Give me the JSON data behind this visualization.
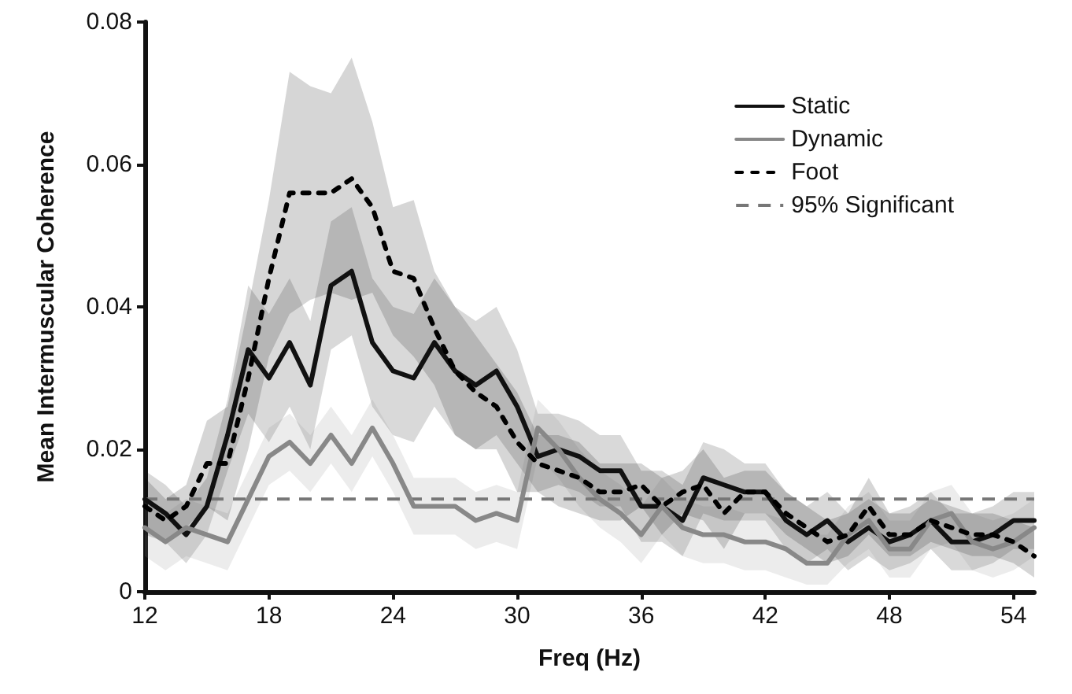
{
  "chart_data": {
    "type": "line",
    "xlabel": "Freq (Hz)",
    "ylabel": "Mean Intermuscular Coherence",
    "x": [
      12,
      13,
      14,
      15,
      16,
      17,
      18,
      19,
      20,
      21,
      22,
      23,
      24,
      25,
      26,
      27,
      28,
      29,
      30,
      31,
      32,
      33,
      34,
      35,
      36,
      37,
      38,
      39,
      40,
      41,
      42,
      43,
      44,
      45,
      46,
      47,
      48,
      49,
      50,
      51,
      52,
      53,
      54,
      55
    ],
    "series": [
      {
        "name": "Static",
        "color": "#111111",
        "line_style": "solid",
        "values": [
          0.013,
          0.011,
          0.008,
          0.012,
          0.022,
          0.034,
          0.03,
          0.035,
          0.029,
          0.043,
          0.045,
          0.035,
          0.031,
          0.03,
          0.035,
          0.031,
          0.029,
          0.031,
          0.026,
          0.019,
          0.02,
          0.019,
          0.017,
          0.017,
          0.012,
          0.012,
          0.01,
          0.016,
          0.015,
          0.014,
          0.014,
          0.01,
          0.008,
          0.01,
          0.007,
          0.009,
          0.007,
          0.008,
          0.01,
          0.007,
          0.007,
          0.008,
          0.01,
          0.01
        ],
        "upper": [
          0.017,
          0.015,
          0.012,
          0.016,
          0.027,
          0.043,
          0.039,
          0.044,
          0.038,
          0.052,
          0.054,
          0.044,
          0.04,
          0.039,
          0.044,
          0.04,
          0.038,
          0.04,
          0.034,
          0.025,
          0.025,
          0.024,
          0.022,
          0.022,
          0.017,
          0.017,
          0.015,
          0.021,
          0.02,
          0.018,
          0.018,
          0.014,
          0.012,
          0.014,
          0.011,
          0.013,
          0.011,
          0.012,
          0.014,
          0.011,
          0.011,
          0.012,
          0.014,
          0.014
        ],
        "lower": [
          0.009,
          0.007,
          0.004,
          0.008,
          0.017,
          0.025,
          0.021,
          0.026,
          0.02,
          0.034,
          0.036,
          0.026,
          0.022,
          0.021,
          0.026,
          0.022,
          0.02,
          0.022,
          0.018,
          0.014,
          0.015,
          0.014,
          0.012,
          0.012,
          0.007,
          0.007,
          0.005,
          0.011,
          0.01,
          0.01,
          0.01,
          0.006,
          0.004,
          0.006,
          0.003,
          0.005,
          0.003,
          0.004,
          0.006,
          0.003,
          0.003,
          0.004,
          0.006,
          0.006
        ]
      },
      {
        "name": "Dynamic",
        "color": "#888888",
        "line_style": "solid",
        "values": [
          0.009,
          0.007,
          0.009,
          0.008,
          0.007,
          0.013,
          0.019,
          0.021,
          0.018,
          0.022,
          0.018,
          0.023,
          0.018,
          0.012,
          0.012,
          0.012,
          0.01,
          0.011,
          0.01,
          0.023,
          0.02,
          0.016,
          0.013,
          0.011,
          0.008,
          0.012,
          0.009,
          0.008,
          0.008,
          0.007,
          0.007,
          0.006,
          0.004,
          0.004,
          0.008,
          0.01,
          0.006,
          0.006,
          0.01,
          0.011,
          0.007,
          0.006,
          0.007,
          0.009
        ],
        "upper": [
          0.013,
          0.011,
          0.013,
          0.012,
          0.011,
          0.017,
          0.023,
          0.025,
          0.022,
          0.026,
          0.022,
          0.027,
          0.022,
          0.016,
          0.016,
          0.016,
          0.014,
          0.015,
          0.014,
          0.027,
          0.024,
          0.02,
          0.017,
          0.015,
          0.012,
          0.016,
          0.013,
          0.012,
          0.012,
          0.011,
          0.011,
          0.01,
          0.008,
          0.008,
          0.012,
          0.014,
          0.01,
          0.01,
          0.014,
          0.015,
          0.011,
          0.01,
          0.011,
          0.013
        ],
        "lower": [
          0.005,
          0.003,
          0.005,
          0.004,
          0.003,
          0.009,
          0.015,
          0.017,
          0.014,
          0.018,
          0.014,
          0.019,
          0.014,
          0.008,
          0.008,
          0.008,
          0.006,
          0.007,
          0.006,
          0.019,
          0.016,
          0.012,
          0.009,
          0.007,
          0.004,
          0.008,
          0.005,
          0.004,
          0.004,
          0.003,
          0.003,
          0.002,
          0.001,
          0.001,
          0.004,
          0.006,
          0.002,
          0.002,
          0.006,
          0.007,
          0.003,
          0.002,
          0.003,
          0.005
        ]
      },
      {
        "name": "Foot",
        "color": "#000000",
        "line_style": "dotted",
        "values": [
          0.012,
          0.01,
          0.012,
          0.018,
          0.018,
          0.03,
          0.044,
          0.056,
          0.056,
          0.056,
          0.058,
          0.054,
          0.045,
          0.044,
          0.037,
          0.031,
          0.028,
          0.026,
          0.021,
          0.018,
          0.017,
          0.016,
          0.014,
          0.014,
          0.015,
          0.012,
          0.014,
          0.015,
          0.011,
          0.014,
          0.014,
          0.011,
          0.009,
          0.007,
          0.008,
          0.012,
          0.008,
          0.008,
          0.01,
          0.009,
          0.008,
          0.008,
          0.007,
          0.005
        ],
        "upper": [
          0.016,
          0.013,
          0.015,
          0.024,
          0.026,
          0.04,
          0.055,
          0.073,
          0.071,
          0.07,
          0.075,
          0.066,
          0.054,
          0.055,
          0.045,
          0.04,
          0.036,
          0.032,
          0.028,
          0.022,
          0.022,
          0.021,
          0.018,
          0.018,
          0.018,
          0.016,
          0.017,
          0.02,
          0.016,
          0.017,
          0.017,
          0.014,
          0.012,
          0.01,
          0.011,
          0.016,
          0.011,
          0.011,
          0.013,
          0.012,
          0.011,
          0.011,
          0.01,
          0.009
        ],
        "lower": [
          0.008,
          0.007,
          0.009,
          0.012,
          0.01,
          0.02,
          0.033,
          0.039,
          0.041,
          0.042,
          0.041,
          0.042,
          0.036,
          0.033,
          0.029,
          0.022,
          0.02,
          0.02,
          0.014,
          0.014,
          0.012,
          0.011,
          0.01,
          0.01,
          0.012,
          0.008,
          0.011,
          0.01,
          0.006,
          0.011,
          0.011,
          0.008,
          0.006,
          0.004,
          0.005,
          0.008,
          0.005,
          0.005,
          0.007,
          0.006,
          0.005,
          0.005,
          0.004,
          0.002
        ]
      }
    ],
    "ref_lines": [
      {
        "axis": "y",
        "value": 0.013,
        "label": "95% Significant",
        "color": "#777777",
        "line_style": "dashed"
      }
    ],
    "xlim": [
      12,
      55
    ],
    "xticks": [
      12,
      18,
      24,
      30,
      36,
      42,
      48,
      54
    ],
    "ylim": [
      0,
      0.08
    ],
    "yticks": [
      0,
      0.02,
      0.04,
      0.06,
      0.08
    ],
    "marker": "none",
    "legend": "top right"
  }
}
